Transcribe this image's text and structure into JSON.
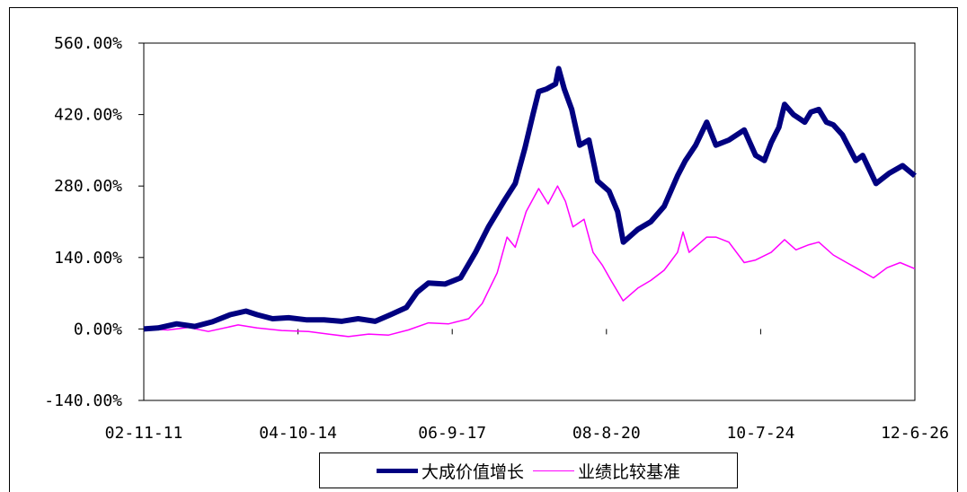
{
  "chart_data": {
    "type": "line",
    "title": "",
    "xlabel": "",
    "ylabel": "",
    "ylim": [
      -140,
      560
    ],
    "y_ticks": [
      -140,
      0,
      140,
      280,
      420,
      560
    ],
    "y_tick_labels": [
      "-140.00%",
      "0.00%",
      "140.00%",
      "280.00%",
      "420.00%",
      "560.00%"
    ],
    "x_ticks": [
      "2002-11-11",
      "2004-10-14",
      "2006-09-17",
      "2008-08-20",
      "2010-07-24",
      "2012-06-26"
    ],
    "x_tick_labels": [
      "02-11-11",
      "04-10-14",
      "06-9-17",
      "08-8-20",
      "10-7-24",
      "12-6-26"
    ],
    "xlim": [
      "2002-11-11",
      "2012-06-26"
    ],
    "grid": "horizontal",
    "legend_position": "bottom",
    "series": [
      {
        "name": "大成价值增长",
        "color": "#000080",
        "points": [
          [
            "2002-11-11",
            0
          ],
          [
            "2003-01-15",
            2
          ],
          [
            "2003-04-10",
            10
          ],
          [
            "2003-07-01",
            5
          ],
          [
            "2003-09-20",
            14
          ],
          [
            "2003-12-10",
            28
          ],
          [
            "2004-02-20",
            35
          ],
          [
            "2004-04-10",
            28
          ],
          [
            "2004-06-20",
            20
          ],
          [
            "2004-09-01",
            22
          ],
          [
            "2004-11-20",
            18
          ],
          [
            "2005-02-10",
            18
          ],
          [
            "2005-05-01",
            15
          ],
          [
            "2005-07-15",
            20
          ],
          [
            "2005-10-01",
            15
          ],
          [
            "2005-12-10",
            28
          ],
          [
            "2006-02-20",
            42
          ],
          [
            "2006-04-10",
            72
          ],
          [
            "2006-06-01",
            90
          ],
          [
            "2006-08-15",
            88
          ],
          [
            "2006-10-25",
            100
          ],
          [
            "2007-01-01",
            150
          ],
          [
            "2007-03-01",
            200
          ],
          [
            "2007-05-10",
            250
          ],
          [
            "2007-07-01",
            285
          ],
          [
            "2007-08-15",
            355
          ],
          [
            "2007-09-20",
            420
          ],
          [
            "2007-10-16",
            465
          ],
          [
            "2007-11-20",
            470
          ],
          [
            "2008-01-01",
            480
          ],
          [
            "2008-01-15",
            510
          ],
          [
            "2008-02-10",
            470
          ],
          [
            "2008-03-15",
            430
          ],
          [
            "2008-04-20",
            360
          ],
          [
            "2008-06-01",
            370
          ],
          [
            "2008-07-10",
            290
          ],
          [
            "2008-09-01",
            270
          ],
          [
            "2008-10-10",
            230
          ],
          [
            "2008-11-05",
            170
          ],
          [
            "2009-01-10",
            195
          ],
          [
            "2009-03-10",
            210
          ],
          [
            "2009-05-10",
            240
          ],
          [
            "2009-07-10",
            300
          ],
          [
            "2009-08-15",
            330
          ],
          [
            "2009-10-01",
            360
          ],
          [
            "2009-11-20",
            405
          ],
          [
            "2010-01-01",
            360
          ],
          [
            "2010-03-01",
            370
          ],
          [
            "2010-05-10",
            390
          ],
          [
            "2010-07-01",
            340
          ],
          [
            "2010-08-10",
            330
          ],
          [
            "2010-09-10",
            365
          ],
          [
            "2010-10-15",
            395
          ],
          [
            "2010-11-10",
            440
          ],
          [
            "2010-12-20",
            420
          ],
          [
            "2011-02-10",
            405
          ],
          [
            "2011-03-10",
            425
          ],
          [
            "2011-04-15",
            430
          ],
          [
            "2011-05-20",
            405
          ],
          [
            "2011-06-20",
            400
          ],
          [
            "2011-08-01",
            380
          ],
          [
            "2011-10-01",
            330
          ],
          [
            "2011-11-01",
            340
          ],
          [
            "2012-01-01",
            285
          ],
          [
            "2012-03-01",
            305
          ],
          [
            "2012-05-01",
            320
          ],
          [
            "2012-06-26",
            300
          ]
        ]
      },
      {
        "name": "业绩比较基准",
        "color": "#ff00ff",
        "points": [
          [
            "2002-11-11",
            0
          ],
          [
            "2003-03-01",
            -2
          ],
          [
            "2003-06-01",
            3
          ],
          [
            "2003-09-01",
            -5
          ],
          [
            "2004-01-15",
            8
          ],
          [
            "2004-04-10",
            2
          ],
          [
            "2004-08-01",
            -3
          ],
          [
            "2004-12-01",
            -5
          ],
          [
            "2005-03-01",
            -10
          ],
          [
            "2005-06-01",
            -15
          ],
          [
            "2005-09-01",
            -10
          ],
          [
            "2005-12-01",
            -12
          ],
          [
            "2006-03-01",
            -2
          ],
          [
            "2006-06-01",
            12
          ],
          [
            "2006-09-01",
            10
          ],
          [
            "2006-12-01",
            20
          ],
          [
            "2007-02-01",
            50
          ],
          [
            "2007-04-10",
            110
          ],
          [
            "2007-05-25",
            180
          ],
          [
            "2007-07-01",
            160
          ],
          [
            "2007-08-20",
            230
          ],
          [
            "2007-10-16",
            275
          ],
          [
            "2007-11-28",
            245
          ],
          [
            "2008-01-10",
            280
          ],
          [
            "2008-02-15",
            250
          ],
          [
            "2008-03-20",
            200
          ],
          [
            "2008-05-10",
            215
          ],
          [
            "2008-06-20",
            150
          ],
          [
            "2008-08-01",
            125
          ],
          [
            "2008-09-10",
            95
          ],
          [
            "2008-11-04",
            55
          ],
          [
            "2009-01-10",
            80
          ],
          [
            "2009-03-10",
            95
          ],
          [
            "2009-05-10",
            115
          ],
          [
            "2009-07-10",
            150
          ],
          [
            "2009-08-04",
            190
          ],
          [
            "2009-09-01",
            150
          ],
          [
            "2009-11-20",
            180
          ],
          [
            "2010-01-01",
            180
          ],
          [
            "2010-03-01",
            170
          ],
          [
            "2010-05-10",
            130
          ],
          [
            "2010-07-01",
            135
          ],
          [
            "2010-09-10",
            150
          ],
          [
            "2010-11-10",
            175
          ],
          [
            "2011-01-01",
            155
          ],
          [
            "2011-03-01",
            165
          ],
          [
            "2011-04-15",
            170
          ],
          [
            "2011-06-20",
            145
          ],
          [
            "2011-08-20",
            130
          ],
          [
            "2011-10-01",
            120
          ],
          [
            "2011-12-20",
            100
          ],
          [
            "2012-02-20",
            120
          ],
          [
            "2012-04-20",
            130
          ],
          [
            "2012-06-26",
            118
          ]
        ]
      }
    ]
  }
}
